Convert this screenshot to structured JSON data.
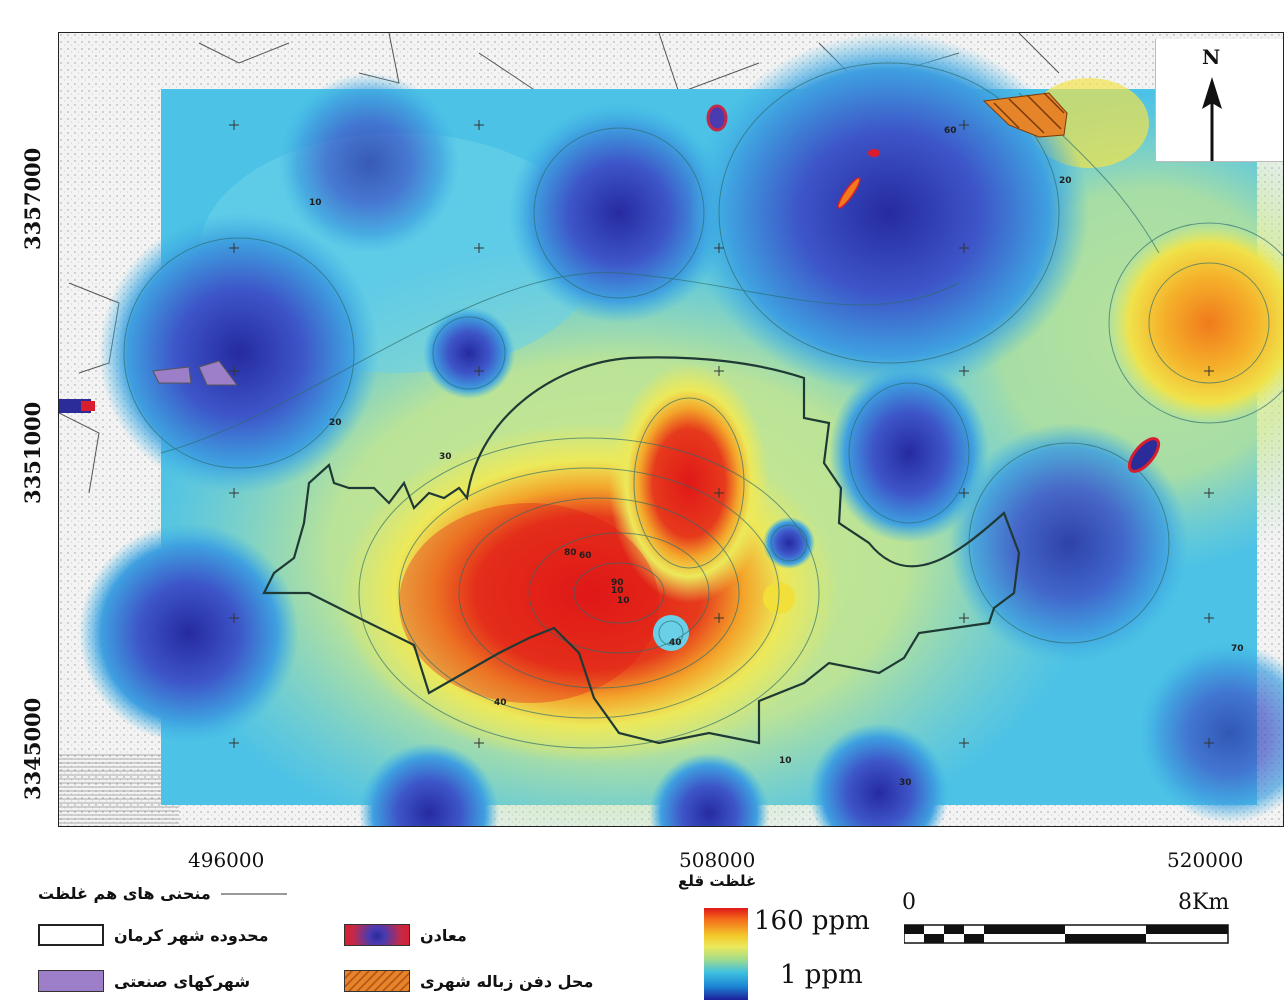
{
  "map": {
    "north_label": "N",
    "y_ticks": [
      "3357000",
      "3351000",
      "3345000"
    ],
    "x_ticks": [
      "496000",
      "508000",
      "520000"
    ],
    "contour_labels": [
      "10",
      "20",
      "20",
      "30",
      "40",
      "60",
      "80",
      "90",
      "10",
      "10",
      "10",
      "30",
      "60",
      "70",
      "40"
    ]
  },
  "legend": {
    "isolines": "منحنی های هم غلظت",
    "city_boundary": "محدوده شهر کرمان",
    "industrial_towns": "شهرکهای صنعتی",
    "mines": "معادن",
    "landfill": "محل دفن زباله شهری",
    "concentration_title": "غلظت قلع",
    "max_value": "160 ppm",
    "min_value": "1 ppm"
  },
  "scale_bar": {
    "start_label": "0",
    "end_label": "8Km"
  },
  "colors": {
    "high": "#e01818",
    "mid": "#f3e23a",
    "low_cyan": "#3ec0df",
    "low": "#1d1f9a"
  }
}
